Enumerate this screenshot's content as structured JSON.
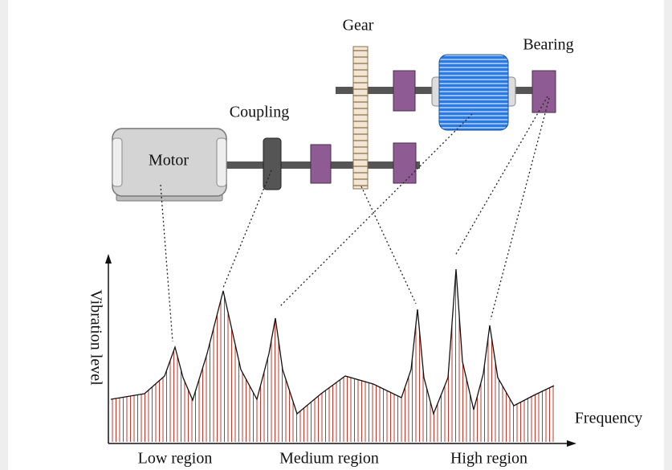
{
  "components": {
    "gear": "Gear",
    "bearing": "Bearing",
    "coupling": "Coupling",
    "motor": "Motor"
  },
  "axes": {
    "y_label": "Vibration level",
    "x_label": "Frequency"
  },
  "regions": [
    "Low region",
    "Medium region",
    "High region"
  ]
}
